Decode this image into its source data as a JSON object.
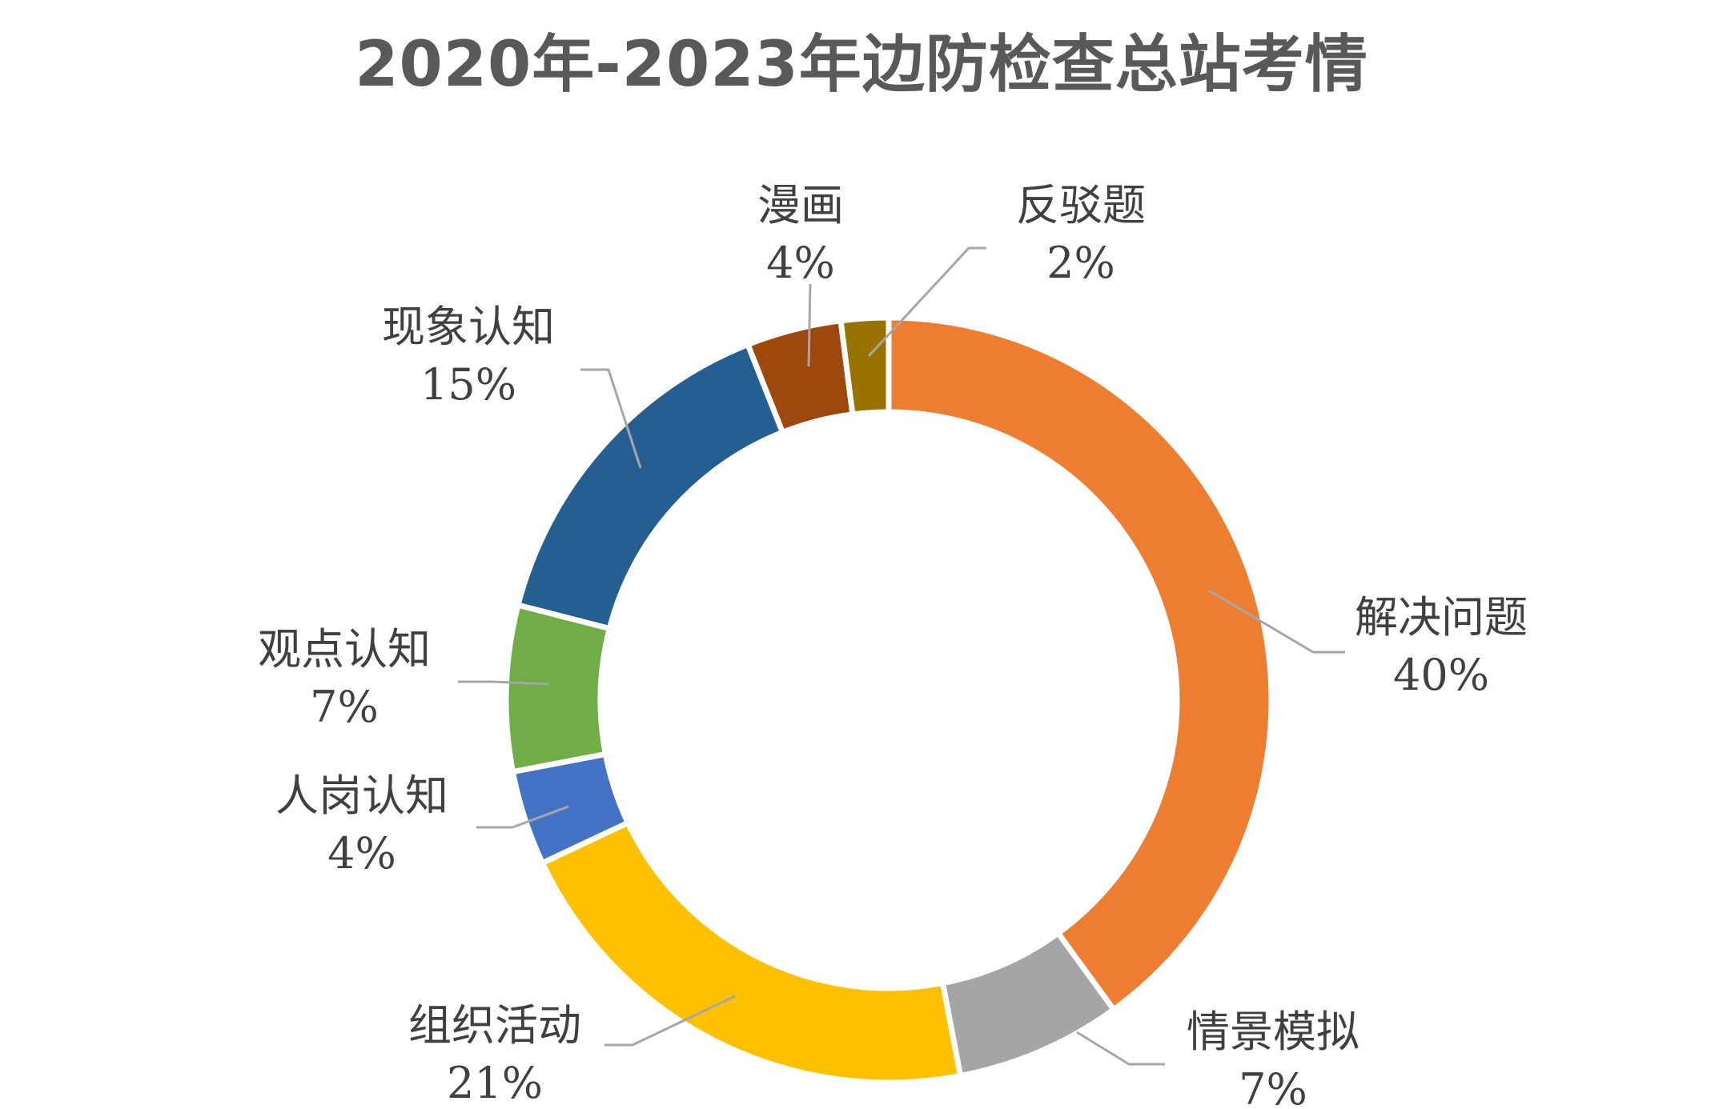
{
  "chart_data": {
    "type": "pie",
    "title": "2020年-2023年边防检查总站考情",
    "categories": [
      "解决问题",
      "情景模拟",
      "组织活动",
      "人岗认知",
      "观点认知",
      "现象认知",
      "漫画",
      "反驳题"
    ],
    "values": [
      40,
      7,
      21,
      4,
      7,
      15,
      4,
      2
    ],
    "value_labels": [
      "40%",
      "7%",
      "21%",
      "4%",
      "7%",
      "15%",
      "4%",
      "2%"
    ],
    "colors": [
      "#ED7D31",
      "#A5A5A5",
      "#FFC000",
      "#4472C4",
      "#70AD47",
      "#255E91",
      "#9E480E",
      "#997300"
    ],
    "donut": true,
    "legend": "none",
    "grid": false
  }
}
